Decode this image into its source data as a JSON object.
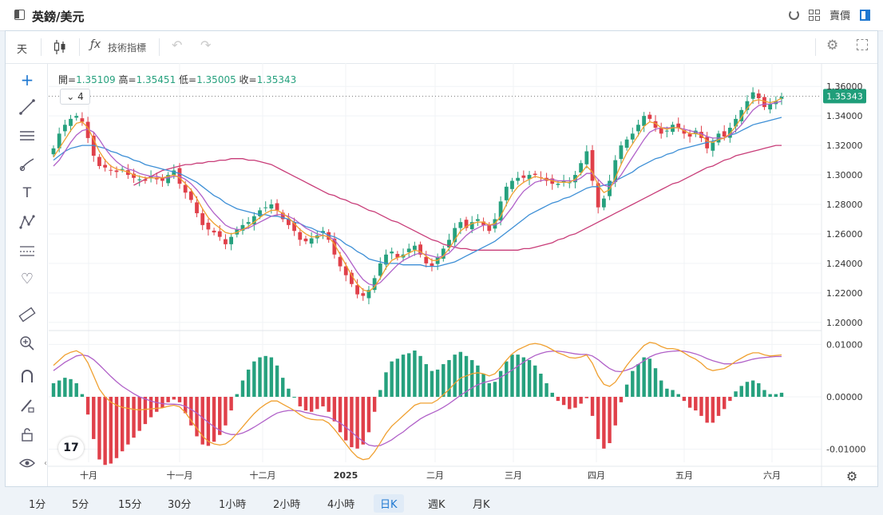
{
  "window": {
    "title": "英鎊/美元",
    "right_label": "賣價"
  },
  "toolbar": {
    "timeframe": "天",
    "indicators_label": "技術指標"
  },
  "legend": {
    "open_label": "開=",
    "open": "1.35109",
    "high_label": "高=",
    "high": "1.35451",
    "low_label": "低=",
    "low": "1.35005",
    "close_label": "收=",
    "close": "1.35343",
    "collapsed_count": "4"
  },
  "intervals": [
    "1分",
    "5分",
    "15分",
    "30分",
    "1小時",
    "2小時",
    "4小時",
    "日K",
    "週K",
    "月K"
  ],
  "active_interval": "日K",
  "colors": {
    "up": "#26a17e",
    "down": "#e0404a",
    "ma_fast": "#f0a030",
    "ma_mid": "#b060c8",
    "ma_slow": "#3d8fd6",
    "ma_long": "#c83c78",
    "accent": "#1f9e7a"
  },
  "sidebar_icons": [
    "crosshair-icon",
    "trend-line-icon",
    "parallel-lines-icon",
    "brush-icon",
    "text-icon",
    "pattern-icon",
    "measure-icon",
    "heart-icon",
    "ruler-icon",
    "zoom-in-icon",
    "magnet-icon",
    "pencil-lock-icon",
    "lock-icon",
    "eye-icon"
  ],
  "chart_data": [
    {
      "type": "candlestick",
      "instrument": "英鎊/美元",
      "x_ticks": [
        "十月",
        "十一月",
        "十二月",
        "2025",
        "二月",
        "三月",
        "四月",
        "五月",
        "六月"
      ],
      "y_ticks": [
        "1.36000",
        "1.34000",
        "1.32000",
        "1.30000",
        "1.28000",
        "1.26000",
        "1.24000",
        "1.22000",
        "1.20000"
      ],
      "ylim": [
        1.195,
        1.365
      ],
      "last_price": "1.35343",
      "close_path": [
        1.318,
        1.328,
        1.334,
        1.338,
        1.34,
        1.336,
        1.325,
        1.313,
        1.306,
        1.305,
        1.303,
        1.302,
        1.304,
        1.3,
        1.298,
        1.297,
        1.296,
        1.299,
        1.297,
        1.296,
        1.3,
        1.303,
        1.294,
        1.288,
        1.283,
        1.274,
        1.266,
        1.263,
        1.261,
        1.258,
        1.253,
        1.258,
        1.263,
        1.266,
        1.268,
        1.272,
        1.276,
        1.278,
        1.28,
        1.276,
        1.27,
        1.266,
        1.262,
        1.256,
        1.255,
        1.257,
        1.259,
        1.262,
        1.256,
        1.246,
        1.238,
        1.232,
        1.226,
        1.219,
        1.218,
        1.222,
        1.23,
        1.24,
        1.246,
        1.248,
        1.244,
        1.246,
        1.25,
        1.252,
        1.246,
        1.24,
        1.238,
        1.244,
        1.25,
        1.256,
        1.264,
        1.268,
        1.264,
        1.268,
        1.27,
        1.266,
        1.262,
        1.27,
        1.282,
        1.292,
        1.296,
        1.298,
        1.298,
        1.3,
        1.3,
        1.298,
        1.296,
        1.294,
        1.294,
        1.296,
        1.295,
        1.3,
        1.308,
        1.316,
        1.296,
        1.278,
        1.284,
        1.296,
        1.31,
        1.32,
        1.324,
        1.328,
        1.334,
        1.34,
        1.338,
        1.332,
        1.328,
        1.33,
        1.334,
        1.332,
        1.328,
        1.326,
        1.33,
        1.325,
        1.318,
        1.322,
        1.328,
        1.326,
        1.332,
        1.338,
        1.344,
        1.35,
        1.356,
        1.352,
        1.346,
        1.348,
        1.35,
        1.353
      ],
      "ma_fast": [
        1.312,
        1.318,
        1.324,
        1.33,
        1.335,
        1.336,
        1.332,
        1.324,
        1.316,
        1.31,
        1.306,
        1.304,
        1.303,
        1.302,
        1.3,
        1.299,
        1.298,
        1.298,
        1.298,
        1.298,
        1.299,
        1.3,
        1.298,
        1.294,
        1.29,
        1.284,
        1.277,
        1.271,
        1.267,
        1.264,
        1.261,
        1.26,
        1.261,
        1.263,
        1.265,
        1.268,
        1.271,
        1.274,
        1.276,
        1.276,
        1.274,
        1.271,
        1.267,
        1.263,
        1.26,
        1.258,
        1.258,
        1.259,
        1.258,
        1.253,
        1.246,
        1.239,
        1.232,
        1.226,
        1.222,
        1.221,
        1.224,
        1.23,
        1.237,
        1.242,
        1.244,
        1.245,
        1.247,
        1.249,
        1.248,
        1.245,
        1.242,
        1.242,
        1.245,
        1.25,
        1.256,
        1.262,
        1.265,
        1.267,
        1.268,
        1.268,
        1.266,
        1.267,
        1.272,
        1.28,
        1.287,
        1.292,
        1.295,
        1.297,
        1.299,
        1.298,
        1.297,
        1.296,
        1.295,
        1.295,
        1.295,
        1.297,
        1.301,
        1.306,
        1.302,
        1.293,
        1.288,
        1.29,
        1.298,
        1.307,
        1.315,
        1.321,
        1.327,
        1.333,
        1.336,
        1.335,
        1.332,
        1.331,
        1.332,
        1.332,
        1.33,
        1.328,
        1.328,
        1.327,
        1.323,
        1.322,
        1.324,
        1.325,
        1.328,
        1.333,
        1.339,
        1.345,
        1.35,
        1.351,
        1.35,
        1.349,
        1.35,
        1.352
      ],
      "ma_mid": [
        1.306,
        1.31,
        1.316,
        1.322,
        1.327,
        1.33,
        1.331,
        1.329,
        1.324,
        1.318,
        1.313,
        1.309,
        1.306,
        1.304,
        1.303,
        1.301,
        1.3,
        1.299,
        1.299,
        1.298,
        1.298,
        1.299,
        1.299,
        1.297,
        1.294,
        1.29,
        1.285,
        1.279,
        1.274,
        1.27,
        1.266,
        1.264,
        1.263,
        1.263,
        1.264,
        1.266,
        1.268,
        1.27,
        1.272,
        1.273,
        1.273,
        1.272,
        1.27,
        1.267,
        1.264,
        1.262,
        1.26,
        1.259,
        1.258,
        1.256,
        1.251,
        1.246,
        1.24,
        1.234,
        1.229,
        1.226,
        1.225,
        1.227,
        1.231,
        1.235,
        1.239,
        1.242,
        1.244,
        1.246,
        1.247,
        1.246,
        1.245,
        1.244,
        1.245,
        1.247,
        1.251,
        1.255,
        1.259,
        1.262,
        1.264,
        1.266,
        1.266,
        1.266,
        1.268,
        1.273,
        1.278,
        1.284,
        1.289,
        1.292,
        1.295,
        1.296,
        1.297,
        1.297,
        1.296,
        1.296,
        1.296,
        1.296,
        1.298,
        1.301,
        1.301,
        1.297,
        1.293,
        1.292,
        1.295,
        1.3,
        1.306,
        1.312,
        1.318,
        1.324,
        1.329,
        1.331,
        1.332,
        1.332,
        1.332,
        1.332,
        1.331,
        1.33,
        1.329,
        1.328,
        1.326,
        1.325,
        1.325,
        1.325,
        1.327,
        1.33,
        1.334,
        1.339,
        1.344,
        1.347,
        1.348,
        1.348,
        1.349,
        1.35
      ],
      "ma_slow": [
        1.31,
        1.313,
        1.316,
        1.318,
        1.319,
        1.32,
        1.32,
        1.32,
        1.319,
        1.318,
        1.316,
        1.315,
        1.313,
        1.312,
        1.31,
        1.309,
        1.307,
        1.306,
        1.305,
        1.304,
        1.303,
        1.302,
        1.301,
        1.299,
        1.297,
        1.295,
        1.292,
        1.289,
        1.286,
        1.284,
        1.281,
        1.279,
        1.277,
        1.276,
        1.275,
        1.274,
        1.273,
        1.273,
        1.272,
        1.272,
        1.271,
        1.27,
        1.268,
        1.267,
        1.265,
        1.264,
        1.262,
        1.261,
        1.259,
        1.258,
        1.256,
        1.253,
        1.251,
        1.248,
        1.246,
        1.243,
        1.242,
        1.241,
        1.24,
        1.24,
        1.24,
        1.239,
        1.239,
        1.239,
        1.239,
        1.238,
        1.238,
        1.238,
        1.239,
        1.24,
        1.241,
        1.243,
        1.245,
        1.247,
        1.249,
        1.251,
        1.253,
        1.255,
        1.258,
        1.261,
        1.264,
        1.267,
        1.27,
        1.273,
        1.275,
        1.277,
        1.279,
        1.281,
        1.282,
        1.284,
        1.285,
        1.287,
        1.289,
        1.291,
        1.292,
        1.292,
        1.293,
        1.294,
        1.296,
        1.298,
        1.3,
        1.302,
        1.305,
        1.307,
        1.309,
        1.311,
        1.312,
        1.314,
        1.315,
        1.317,
        1.318,
        1.319,
        1.32,
        1.321,
        1.322,
        1.323,
        1.324,
        1.325,
        1.327,
        1.328,
        1.33,
        1.332,
        1.334,
        1.335,
        1.336,
        1.337,
        1.338,
        1.339
      ],
      "ma_long": [
        1.293,
        1.295,
        1.297,
        1.299,
        1.301,
        1.303,
        1.304,
        1.305,
        1.306,
        1.307,
        1.307,
        1.308,
        1.308,
        1.309,
        1.309,
        1.31,
        1.31,
        1.311,
        1.311,
        1.311,
        1.31,
        1.31,
        1.309,
        1.308,
        1.307,
        1.305,
        1.303,
        1.301,
        1.299,
        1.297,
        1.295,
        1.293,
        1.291,
        1.289,
        1.287,
        1.286,
        1.284,
        1.283,
        1.281,
        1.28,
        1.278,
        1.276,
        1.275,
        1.273,
        1.271,
        1.269,
        1.268,
        1.266,
        1.264,
        1.262,
        1.26,
        1.258,
        1.256,
        1.255,
        1.253,
        1.252,
        1.251,
        1.25,
        1.25,
        1.249,
        1.249,
        1.249,
        1.249,
        1.249,
        1.249,
        1.249,
        1.249,
        1.249,
        1.25,
        1.25,
        1.251,
        1.252,
        1.253,
        1.254,
        1.256,
        1.257,
        1.259,
        1.26,
        1.262,
        1.264,
        1.266,
        1.268,
        1.27,
        1.272,
        1.274,
        1.276,
        1.278,
        1.28,
        1.282,
        1.284,
        1.286,
        1.288,
        1.29,
        1.292,
        1.294,
        1.295,
        1.297,
        1.299,
        1.301,
        1.303,
        1.305,
        1.306,
        1.308,
        1.31,
        1.311,
        1.313,
        1.314,
        1.315,
        1.316,
        1.317,
        1.318,
        1.319,
        1.32,
        1.32
      ]
    },
    {
      "type": "macd",
      "y_ticks": [
        "0.01000",
        "0.00000",
        "-0.01000"
      ],
      "ylim": [
        -0.0125,
        0.0125
      ],
      "macd": [
        0.006,
        0.007,
        0.008,
        0.0085,
        0.0088,
        0.0082,
        0.0065,
        0.004,
        0.0015,
        0.0,
        -0.001,
        -0.0016,
        -0.002,
        -0.0022,
        -0.0024,
        -0.0025,
        -0.0024,
        -0.0023,
        -0.0022,
        -0.0021,
        -0.0018,
        -0.0016,
        -0.0019,
        -0.003,
        -0.0045,
        -0.006,
        -0.0075,
        -0.0085,
        -0.009,
        -0.0092,
        -0.009,
        -0.0082,
        -0.007,
        -0.0057,
        -0.0044,
        -0.0032,
        -0.0022,
        -0.0014,
        -0.0008,
        -0.0008,
        -0.0014,
        -0.002,
        -0.0026,
        -0.0034,
        -0.004,
        -0.0043,
        -0.0044,
        -0.0044,
        -0.005,
        -0.0062,
        -0.0076,
        -0.009,
        -0.0104,
        -0.0115,
        -0.012,
        -0.0118,
        -0.0105,
        -0.0088,
        -0.007,
        -0.0056,
        -0.0046,
        -0.0036,
        -0.0026,
        -0.0016,
        -0.0012,
        -0.0012,
        -0.0012,
        -0.0006,
        0.0004,
        0.0014,
        0.0026,
        0.0036,
        0.004,
        0.0044,
        0.0046,
        0.0044,
        0.004,
        0.0044,
        0.0056,
        0.007,
        0.0082,
        0.009,
        0.0095,
        0.01,
        0.0102,
        0.01,
        0.0096,
        0.009,
        0.0084,
        0.008,
        0.0075,
        0.0074,
        0.0076,
        0.008,
        0.0064,
        0.004,
        0.0024,
        0.002,
        0.0028,
        0.0044,
        0.006,
        0.0074,
        0.0086,
        0.0098,
        0.0104,
        0.0102,
        0.0096,
        0.0092,
        0.0092,
        0.009,
        0.0084,
        0.0077,
        0.0072,
        0.0064,
        0.0054,
        0.005,
        0.0052,
        0.0054,
        0.006,
        0.0068,
        0.0074,
        0.008,
        0.0084,
        0.0084,
        0.008,
        0.0078,
        0.0079,
        0.008
      ],
      "signal": [
        0.005,
        0.0058,
        0.0066,
        0.0072,
        0.0078,
        0.008,
        0.0078,
        0.0071,
        0.0061,
        0.005,
        0.0039,
        0.0029,
        0.002,
        0.0013,
        0.0006,
        0.0,
        -0.0004,
        -0.0008,
        -0.0011,
        -0.0013,
        -0.0014,
        -0.0014,
        -0.0015,
        -0.0018,
        -0.0024,
        -0.0031,
        -0.004,
        -0.0049,
        -0.0057,
        -0.0064,
        -0.0069,
        -0.0072,
        -0.0072,
        -0.0069,
        -0.0064,
        -0.0058,
        -0.0051,
        -0.0044,
        -0.0037,
        -0.0031,
        -0.0028,
        -0.0026,
        -0.0026,
        -0.0027,
        -0.003,
        -0.0032,
        -0.0035,
        -0.0037,
        -0.0039,
        -0.0044,
        -0.005,
        -0.0058,
        -0.0067,
        -0.0077,
        -0.0085,
        -0.0092,
        -0.0094,
        -0.0093,
        -0.0088,
        -0.0082,
        -0.0074,
        -0.0067,
        -0.0058,
        -0.005,
        -0.0042,
        -0.0036,
        -0.0031,
        -0.0026,
        -0.002,
        -0.0013,
        -0.0005,
        0.0003,
        0.001,
        0.0017,
        0.0023,
        0.0027,
        0.003,
        0.0033,
        0.0037,
        0.0044,
        0.0051,
        0.0059,
        0.0066,
        0.0073,
        0.0079,
        0.0083,
        0.0086,
        0.0087,
        0.0087,
        0.0086,
        0.0084,
        0.0082,
        0.0081,
        0.0081,
        0.0078,
        0.0071,
        0.0062,
        0.0054,
        0.0049,
        0.0048,
        0.0051,
        0.0055,
        0.0062,
        0.0069,
        0.0076,
        0.0081,
        0.0084,
        0.0086,
        0.0087,
        0.0088,
        0.0087,
        0.0085,
        0.0082,
        0.0078,
        0.0073,
        0.0069,
        0.0066,
        0.0063,
        0.0063,
        0.0064,
        0.0066,
        0.0069,
        0.0072,
        0.0074,
        0.0075,
        0.0076,
        0.0077,
        0.0077
      ]
    }
  ]
}
